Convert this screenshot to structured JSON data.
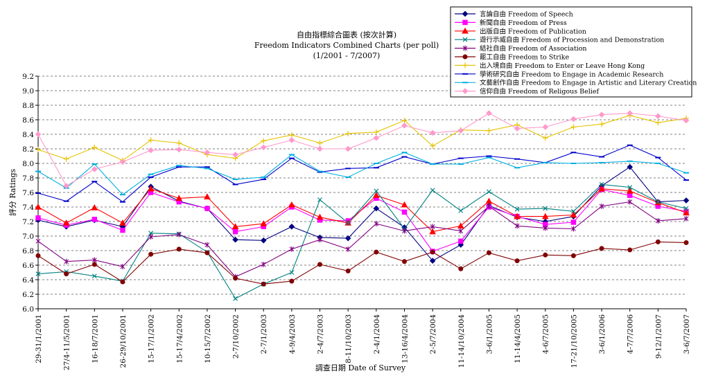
{
  "chart_data": {
    "type": "line",
    "title": [
      "自由指標綜合圖表 (按次計算)",
      "Freedom Indicators Combined Charts (per poll)",
      "(1/2001 - 7/2007)"
    ],
    "xlabel": "調查日期 Date of Survey",
    "ylabel": "評分 Ratings",
    "ylim": [
      6.0,
      9.2
    ],
    "yticks": [
      "6.0",
      "6.2",
      "6.4",
      "6.6",
      "6.8",
      "7.0",
      "7.2",
      "7.4",
      "7.6",
      "7.8",
      "8.0",
      "8.2",
      "8.4",
      "8.6",
      "8.8",
      "9.0",
      "9.2"
    ],
    "grid": "horizontal dashed",
    "legend_position": "top-right",
    "categories": [
      "29-31/1/2001",
      "27/4-11/5/2001",
      "16-18/7/2001",
      "26-29/10/2001",
      "15-17/1/2002",
      "15-17/4/2002",
      "10-15/7/2002",
      "2-7/10/2002",
      "2-7/1/2003",
      "4-9/4/2003",
      "2-4/7/2003",
      "8-11/10/2003",
      "2-4/1/2004",
      "13-16/4/2004",
      "2-5/7/2004",
      "11-14/10/2004",
      "3-6/1/2005",
      "11-14/4/2005",
      "4-6/7/2005",
      "17-21/10/2005",
      "3-6/1/2006",
      "4-7/7/2006",
      "9-12/1/2007",
      "3-6/7/2007"
    ],
    "series": [
      {
        "name": "言論自由 Freedom of Speech",
        "color": "#000080",
        "marker": "diamond",
        "values": [
          7.22,
          7.13,
          7.22,
          7.13,
          7.68,
          7.48,
          7.38,
          6.95,
          6.94,
          7.13,
          6.98,
          6.97,
          7.38,
          7.12,
          6.66,
          6.88,
          7.42,
          7.26,
          7.2,
          7.27,
          7.69,
          7.95,
          7.47,
          7.49
        ]
      },
      {
        "name": "新聞自由 Freedom of Press",
        "color": "#ff00ff",
        "marker": "square",
        "values": [
          7.25,
          7.15,
          7.23,
          7.08,
          7.6,
          7.47,
          7.38,
          7.06,
          7.13,
          7.4,
          7.22,
          7.21,
          7.52,
          7.33,
          6.79,
          6.93,
          7.4,
          7.27,
          7.16,
          7.19,
          7.64,
          7.56,
          7.41,
          7.34
        ]
      },
      {
        "name": "出版自由 Freedom of Publication",
        "color": "#ff0000",
        "marker": "triangle",
        "values": [
          7.4,
          7.18,
          7.39,
          7.18,
          7.65,
          7.52,
          7.54,
          7.13,
          7.17,
          7.43,
          7.26,
          7.18,
          7.56,
          7.43,
          7.06,
          7.14,
          7.48,
          7.27,
          7.27,
          7.29,
          7.65,
          7.62,
          7.46,
          7.32
        ]
      },
      {
        "name": "遊行示威自由 Freedom of Procession and Demonstration",
        "color": "#008080",
        "marker": "x",
        "values": [
          6.48,
          6.51,
          6.45,
          6.38,
          7.04,
          7.03,
          6.78,
          6.14,
          6.34,
          6.5,
          7.5,
          7.18,
          7.62,
          7.1,
          7.63,
          7.35,
          7.61,
          7.37,
          7.38,
          7.34,
          7.71,
          7.67,
          7.47,
          7.38
        ]
      },
      {
        "name": "結社自由 Freedom of Association",
        "color": "#800080",
        "marker": "star",
        "values": [
          6.93,
          6.65,
          6.67,
          6.58,
          6.99,
          7.02,
          6.88,
          6.44,
          6.61,
          6.82,
          6.95,
          6.82,
          7.17,
          7.07,
          7.13,
          7.07,
          7.41,
          7.14,
          7.11,
          7.1,
          7.41,
          7.47,
          7.21,
          7.24
        ]
      },
      {
        "name": "罷工自由 Freedom to Strike",
        "color": "#800000",
        "marker": "circle",
        "values": [
          6.73,
          6.48,
          6.61,
          6.37,
          6.75,
          6.82,
          6.77,
          6.42,
          6.34,
          6.38,
          6.61,
          6.52,
          6.78,
          6.65,
          6.78,
          6.55,
          6.77,
          6.66,
          6.74,
          6.73,
          6.83,
          6.81,
          6.92,
          6.91
        ]
      },
      {
        "name": "出入境自由 Freedom to Enter or Leave Hong Kong",
        "color": "#e6c200",
        "marker": "plus",
        "values": [
          8.19,
          8.06,
          8.22,
          8.04,
          8.32,
          8.28,
          8.12,
          8.07,
          8.31,
          8.39,
          8.28,
          8.41,
          8.43,
          8.59,
          8.24,
          8.46,
          8.45,
          8.53,
          8.35,
          8.5,
          8.54,
          8.66,
          8.56,
          8.62
        ]
      },
      {
        "name": "學術研究自由 Freedom to Engage in Academic Research",
        "color": "#0000cc",
        "marker": "dash",
        "values": [
          7.59,
          7.48,
          7.75,
          7.47,
          7.81,
          7.95,
          7.95,
          7.71,
          7.78,
          8.07,
          7.88,
          7.93,
          7.94,
          8.09,
          7.99,
          8.07,
          8.1,
          8.06,
          8.01,
          8.15,
          8.09,
          8.25,
          8.08,
          7.77
        ]
      },
      {
        "name": "文藝創作自由 Freedom to Engage in Artistic and Literary Creation",
        "color": "#00b0e0",
        "marker": "dash",
        "values": [
          7.89,
          7.66,
          7.99,
          7.57,
          7.85,
          7.97,
          7.93,
          7.78,
          7.81,
          8.12,
          7.89,
          7.81,
          8.0,
          8.15,
          7.99,
          7.99,
          8.08,
          7.94,
          8.01,
          8.0,
          8.01,
          8.03,
          8.0,
          7.87
        ]
      },
      {
        "name": "信仰自由 Freedom of Religous Belief",
        "color": "#ff99cc",
        "marker": "diamond",
        "values": [
          8.4,
          7.69,
          7.92,
          8.02,
          8.18,
          8.19,
          8.15,
          8.12,
          8.22,
          8.32,
          8.2,
          8.2,
          8.35,
          8.52,
          8.42,
          8.45,
          8.69,
          8.48,
          8.5,
          8.61,
          8.67,
          8.69,
          8.65,
          8.59
        ]
      }
    ]
  }
}
